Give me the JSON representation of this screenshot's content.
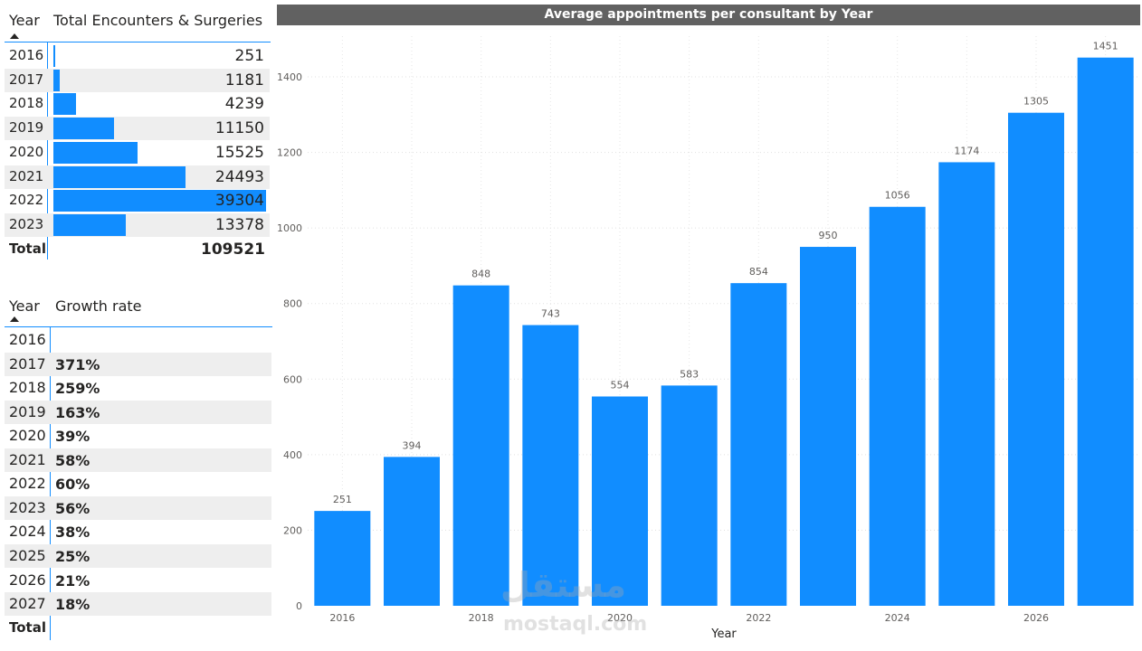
{
  "encounters_table": {
    "col_year": "Year",
    "col_value": "Total Encounters & Surgeries",
    "rows": [
      {
        "year": "2016",
        "value": "251"
      },
      {
        "year": "2017",
        "value": "1181"
      },
      {
        "year": "2018",
        "value": "4239"
      },
      {
        "year": "2019",
        "value": "11150"
      },
      {
        "year": "2020",
        "value": "15525"
      },
      {
        "year": "2021",
        "value": "24493"
      },
      {
        "year": "2022",
        "value": "39304"
      },
      {
        "year": "2023",
        "value": "13378"
      }
    ],
    "total_label": "Total",
    "total_value": "109521",
    "bar_max": 39304
  },
  "growth_table": {
    "col_year": "Year",
    "col_value": "Growth rate",
    "rows": [
      {
        "year": "2016",
        "value": ""
      },
      {
        "year": "2017",
        "value": "371%"
      },
      {
        "year": "2018",
        "value": "259%"
      },
      {
        "year": "2019",
        "value": "163%"
      },
      {
        "year": "2020",
        "value": "39%"
      },
      {
        "year": "2021",
        "value": "58%"
      },
      {
        "year": "2022",
        "value": "60%"
      },
      {
        "year": "2023",
        "value": "56%"
      },
      {
        "year": "2024",
        "value": "38%"
      },
      {
        "year": "2025",
        "value": "25%"
      },
      {
        "year": "2026",
        "value": "21%"
      },
      {
        "year": "2027",
        "value": "18%"
      }
    ],
    "total_label": "Total"
  },
  "chart_data": {
    "type": "bar",
    "title": "Average appointments per consultant by Year",
    "xlabel": "Year",
    "ylabel": "",
    "categories": [
      "2016",
      "2017",
      "2018",
      "2019",
      "2020",
      "2021",
      "2022",
      "2023",
      "2024",
      "2025",
      "2026",
      "2027"
    ],
    "values": [
      251,
      394,
      848,
      743,
      554,
      583,
      854,
      950,
      1056,
      1174,
      1305,
      1451
    ],
    "x_tick_labels": [
      "2016",
      "",
      "2018",
      "",
      "2020",
      "",
      "2022",
      "",
      "2024",
      "",
      "2026",
      ""
    ],
    "y_ticks": [
      0,
      200,
      400,
      600,
      800,
      1000,
      1200,
      1400
    ],
    "ylim": [
      0,
      1500
    ],
    "grid": true,
    "color": "#118DFF"
  },
  "watermark": {
    "logo_text": "مستقل",
    "site": "mostaql.com"
  }
}
